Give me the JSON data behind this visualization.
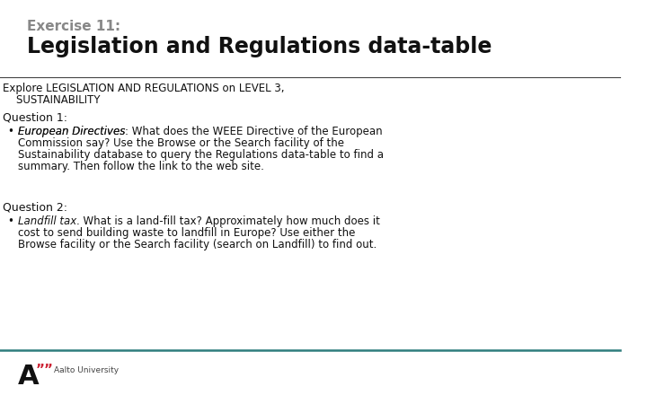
{
  "bg_color": "#ffffff",
  "exercise_label": "Exercise 11:",
  "title": "Legislation and Regulations data-table",
  "subtitle_line1": "Explore LEGISLATION AND REGULATIONS on LEVEL 3,",
  "subtitle_line2": "    SUSTAINABILITY",
  "question1_label": "Question 1:",
  "q1_bullet_italic": "European Directives",
  "q1_bullet_rest": ": What does the WEEE Directive of the European\nCommission say? Use the Browse or the Search facility of the\nSustainability database to query the Regulations data-table to find a\nsummary. Then follow the link to the web site.",
  "question2_label": "Question 2:",
  "q2_bullet_italic": "Landfill tax",
  "q2_bullet_rest": ". What is a land-fill tax? Approximately how much does it\ncost to send building waste to landfill in Europe? Use either the\nBrowse facility or the Search facility (search on Landfill) to find out.",
  "title_underline_color": "#444444",
  "footer_line_color": "#2e7d7d",
  "exercise_color": "#888888",
  "title_color": "#111111",
  "body_color": "#111111",
  "title_fontsize": 17,
  "exercise_fontsize": 11,
  "body_fontsize": 8.5,
  "question_fontsize": 9
}
